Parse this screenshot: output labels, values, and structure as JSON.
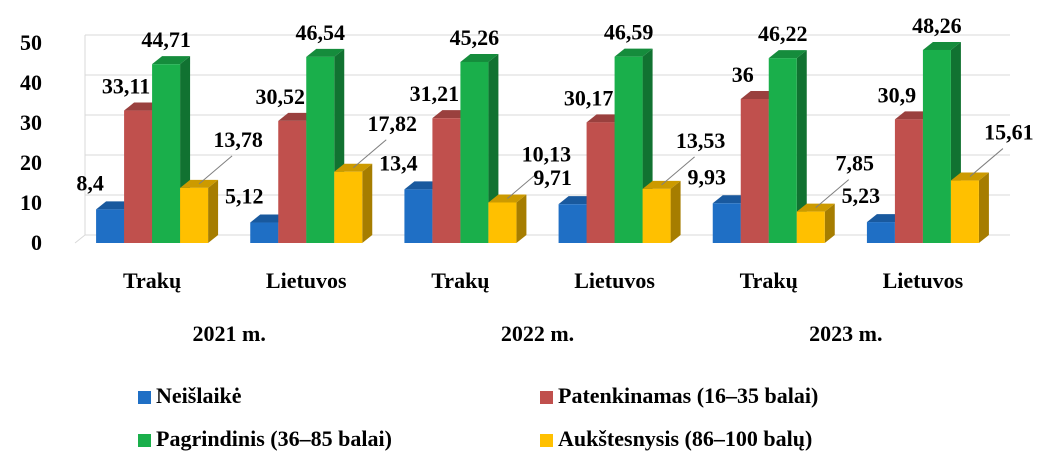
{
  "chart_data": {
    "type": "bar3d",
    "categories": [
      "Trakų",
      "Lietuvos",
      "Trakų",
      "Lietuvos",
      "Trakų",
      "Lietuvos"
    ],
    "group_labels": [
      "2021 m.",
      "2022 m.",
      "2023 m."
    ],
    "series": [
      {
        "name": "Neišlaikė",
        "color": "#1f6fc5",
        "values": [
          8.4,
          5.12,
          13.4,
          9.71,
          9.93,
          5.23
        ],
        "value_labels": [
          "8,4",
          "5,12",
          "13,4",
          "9,71",
          "9,93",
          "5,23"
        ]
      },
      {
        "name": "Patenkinamas (16–35 balai)",
        "color": "#c0504d",
        "values": [
          33.11,
          30.52,
          31.21,
          30.17,
          36,
          30.9
        ],
        "value_labels": [
          "33,11",
          "30,52",
          "31,21",
          "30,17",
          "36",
          "30,9"
        ]
      },
      {
        "name": "Pagrindinis (36–85 balai)",
        "color": "#1aaf4b",
        "values": [
          44.71,
          46.54,
          45.26,
          46.59,
          46.22,
          48.26
        ],
        "value_labels": [
          "44,71",
          "46,54",
          "45,26",
          "46,59",
          "46,22",
          "48,26"
        ]
      },
      {
        "name": "Aukštesnysis (86–100 balų)",
        "color": "#ffc000",
        "values": [
          13.78,
          17.82,
          10.13,
          13.53,
          7.85,
          15.61
        ],
        "value_labels": [
          "13,78",
          "17,82",
          "10,13",
          "13,53",
          "7,85",
          "15,61"
        ]
      }
    ],
    "ylim": [
      0,
      50
    ],
    "yticks": [
      0,
      10,
      20,
      30,
      40,
      50
    ],
    "grid": true
  }
}
